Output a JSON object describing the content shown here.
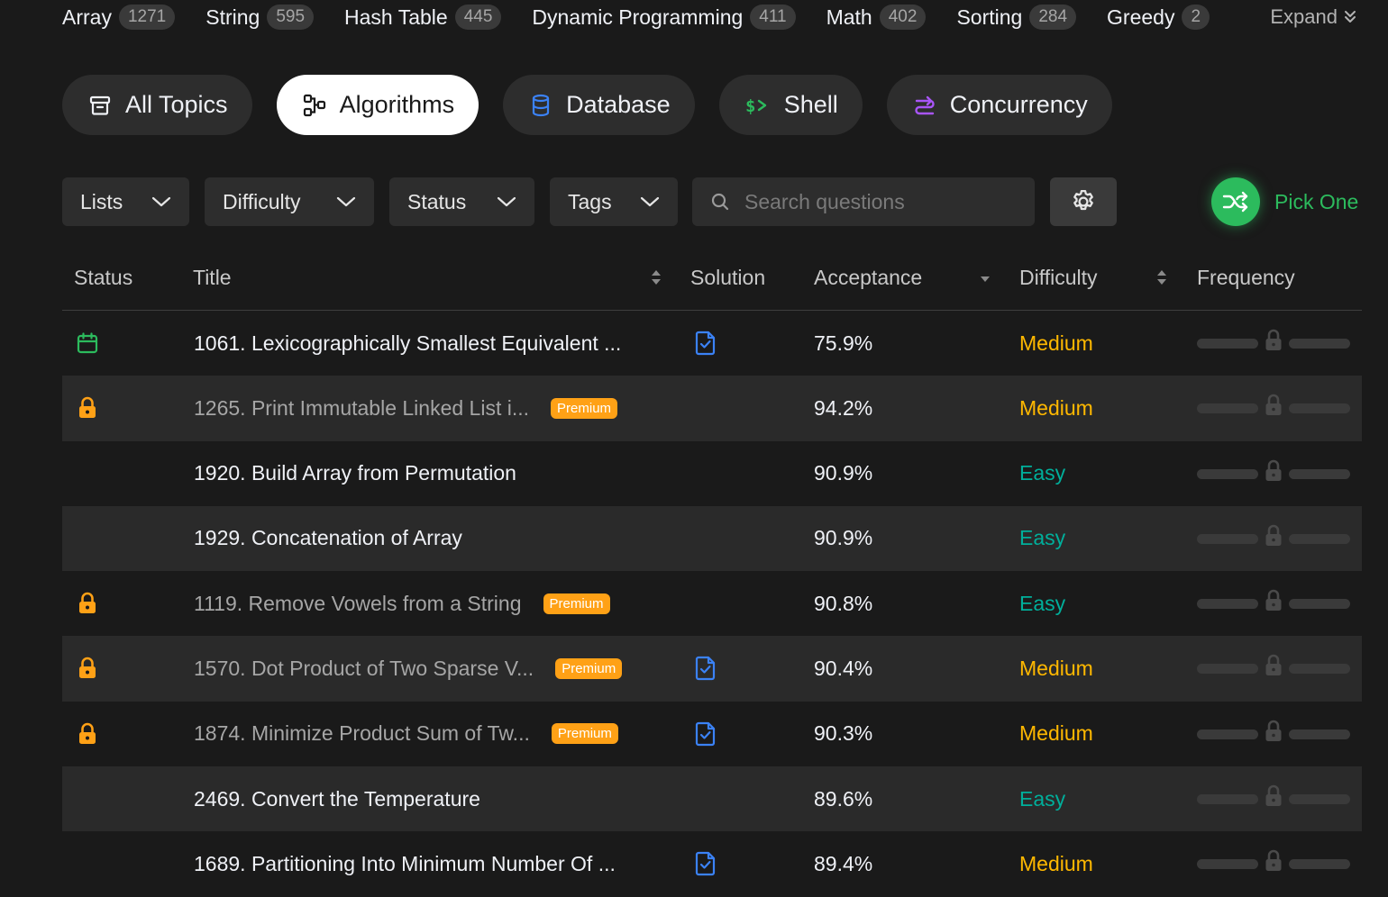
{
  "topic_tags": [
    {
      "name": "Array",
      "count": "1271"
    },
    {
      "name": "String",
      "count": "595"
    },
    {
      "name": "Hash Table",
      "count": "445"
    },
    {
      "name": "Dynamic Programming",
      "count": "411"
    },
    {
      "name": "Math",
      "count": "402"
    },
    {
      "name": "Sorting",
      "count": "284"
    },
    {
      "name": "Greedy",
      "count": "2"
    }
  ],
  "expand_label": "Expand",
  "categories": [
    {
      "label": "All Topics",
      "icon": "archive-icon"
    },
    {
      "label": "Algorithms",
      "icon": "algorithms-icon"
    },
    {
      "label": "Database",
      "icon": "database-icon"
    },
    {
      "label": "Shell",
      "icon": "shell-icon"
    },
    {
      "label": "Concurrency",
      "icon": "concurrency-icon"
    }
  ],
  "active_category": "Algorithms",
  "filters": {
    "lists": "Lists",
    "difficulty": "Difficulty",
    "status": "Status",
    "tags": "Tags",
    "search_placeholder": "Search questions",
    "pick_one": "Pick One"
  },
  "columns": {
    "status": "Status",
    "title": "Title",
    "solution": "Solution",
    "acceptance": "Acceptance",
    "difficulty": "Difficulty",
    "frequency": "Frequency"
  },
  "premium_label": "Premium",
  "colors": {
    "medium": "#ffb800",
    "easy": "#00af9b",
    "premium": "#ffa116",
    "accent_green": "#2cbb5d",
    "solution_blue": "#3b82f6"
  },
  "rows": [
    {
      "status": "calendar",
      "title": "1061. Lexicographically Smallest Equivalent ...",
      "premium": false,
      "solution": true,
      "acceptance": "75.9%",
      "difficulty": "Medium"
    },
    {
      "status": "lock",
      "title": "1265. Print Immutable Linked List i...",
      "premium": true,
      "solution": false,
      "acceptance": "94.2%",
      "difficulty": "Medium"
    },
    {
      "status": "",
      "title": "1920. Build Array from Permutation",
      "premium": false,
      "solution": false,
      "acceptance": "90.9%",
      "difficulty": "Easy"
    },
    {
      "status": "",
      "title": "1929. Concatenation of Array",
      "premium": false,
      "solution": false,
      "acceptance": "90.9%",
      "difficulty": "Easy"
    },
    {
      "status": "lock",
      "title": "1119. Remove Vowels from a String",
      "premium": true,
      "solution": false,
      "acceptance": "90.8%",
      "difficulty": "Easy"
    },
    {
      "status": "lock",
      "title": "1570. Dot Product of Two Sparse V...",
      "premium": true,
      "solution": true,
      "acceptance": "90.4%",
      "difficulty": "Medium"
    },
    {
      "status": "lock",
      "title": "1874. Minimize Product Sum of Tw...",
      "premium": true,
      "solution": true,
      "acceptance": "90.3%",
      "difficulty": "Medium"
    },
    {
      "status": "",
      "title": "2469. Convert the Temperature",
      "premium": false,
      "solution": false,
      "acceptance": "89.6%",
      "difficulty": "Easy"
    },
    {
      "status": "",
      "title": "1689. Partitioning Into Minimum Number Of ...",
      "premium": false,
      "solution": true,
      "acceptance": "89.4%",
      "difficulty": "Medium"
    }
  ]
}
